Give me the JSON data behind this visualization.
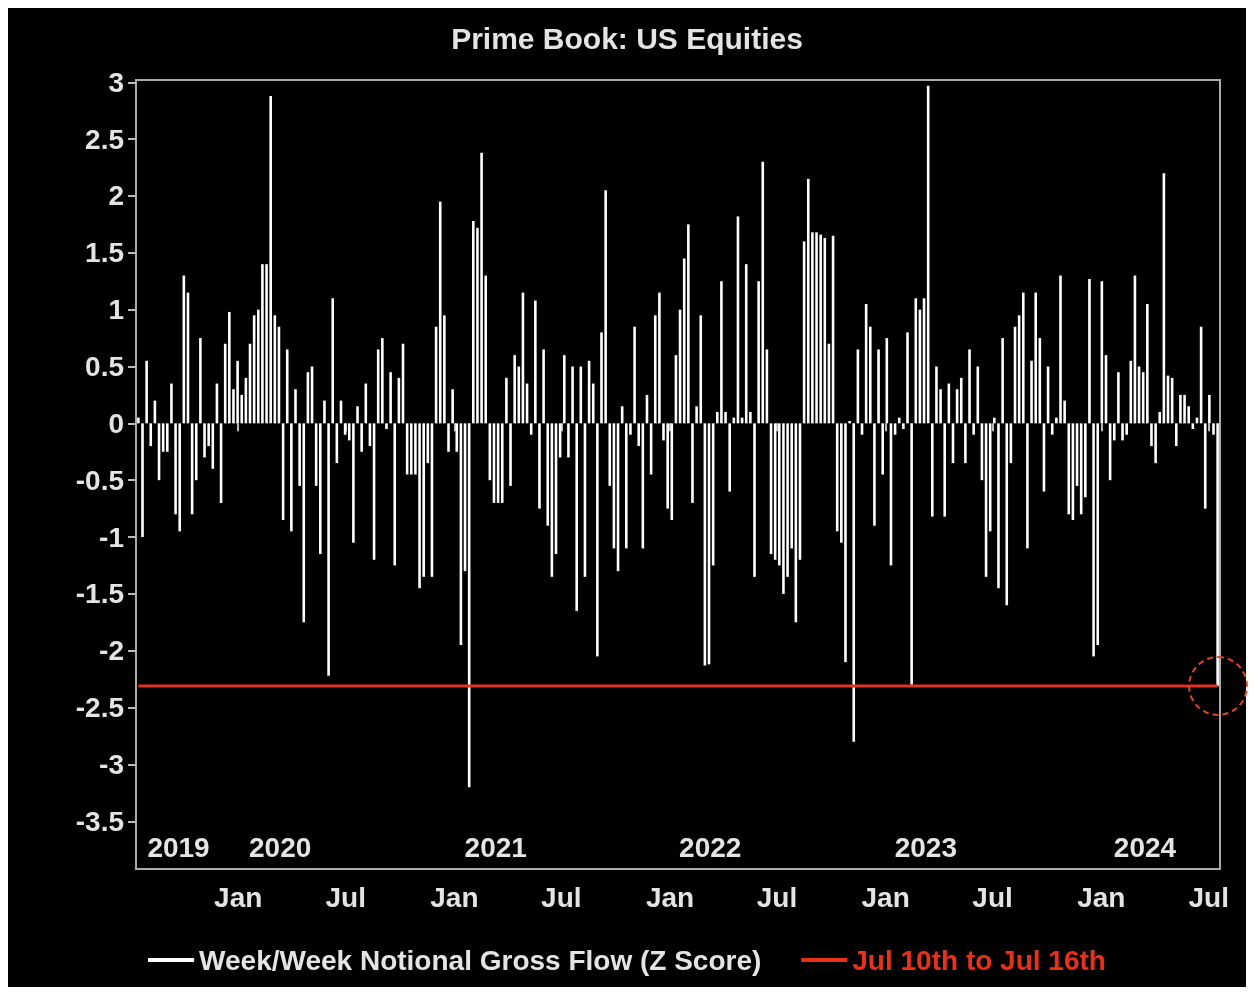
{
  "chart_data": {
    "type": "bar",
    "title": "Prime Book: US Equities",
    "x": [
      "2019-07-16",
      "2019-07-23",
      "2019-07-30",
      "2019-08-06",
      "2019-08-13",
      "2019-08-20",
      "2019-08-27",
      "2019-09-03",
      "2019-09-10",
      "2019-09-17",
      "2019-09-24",
      "2019-10-01",
      "2019-10-08",
      "2019-10-15",
      "2019-10-22",
      "2019-10-29",
      "2019-11-05",
      "2019-11-12",
      "2019-11-19",
      "2019-11-26",
      "2019-12-03",
      "2019-12-10",
      "2019-12-17",
      "2019-12-24",
      "2019-12-31",
      "2020-01-07",
      "2020-01-14",
      "2020-01-21",
      "2020-01-28",
      "2020-02-04",
      "2020-02-11",
      "2020-02-18",
      "2020-02-25",
      "2020-03-03",
      "2020-03-10",
      "2020-03-17",
      "2020-03-24",
      "2020-03-31",
      "2020-04-07",
      "2020-04-14",
      "2020-04-21",
      "2020-04-28",
      "2020-05-05",
      "2020-05-12",
      "2020-05-19",
      "2020-05-26",
      "2020-06-02",
      "2020-06-09",
      "2020-06-16",
      "2020-06-23",
      "2020-06-30",
      "2020-07-07",
      "2020-07-14",
      "2020-07-21",
      "2020-07-28",
      "2020-08-04",
      "2020-08-11",
      "2020-08-18",
      "2020-08-25",
      "2020-09-01",
      "2020-09-08",
      "2020-09-15",
      "2020-09-22",
      "2020-09-29",
      "2020-10-06",
      "2020-10-13",
      "2020-10-20",
      "2020-10-27",
      "2020-11-03",
      "2020-11-10",
      "2020-11-17",
      "2020-11-24",
      "2020-12-01",
      "2020-12-08",
      "2020-12-15",
      "2020-12-22",
      "2020-12-29",
      "2021-01-05",
      "2021-01-12",
      "2021-01-19",
      "2021-01-26",
      "2021-02-02",
      "2021-02-09",
      "2021-02-16",
      "2021-02-23",
      "2021-03-02",
      "2021-03-09",
      "2021-03-16",
      "2021-03-23",
      "2021-03-30",
      "2021-04-06",
      "2021-04-13",
      "2021-04-20",
      "2021-04-27",
      "2021-05-04",
      "2021-05-11",
      "2021-05-18",
      "2021-05-25",
      "2021-06-01",
      "2021-06-08",
      "2021-06-15",
      "2021-06-22",
      "2021-06-29",
      "2021-07-06",
      "2021-07-13",
      "2021-07-20",
      "2021-07-27",
      "2021-08-03",
      "2021-08-10",
      "2021-08-17",
      "2021-08-24",
      "2021-08-31",
      "2021-09-07",
      "2021-09-14",
      "2021-09-21",
      "2021-09-28",
      "2021-10-05",
      "2021-10-12",
      "2021-10-19",
      "2021-10-26",
      "2021-11-02",
      "2021-11-09",
      "2021-11-16",
      "2021-11-23",
      "2021-11-30",
      "2021-12-07",
      "2021-12-14",
      "2021-12-21",
      "2021-12-28",
      "2022-01-04",
      "2022-01-11",
      "2022-01-18",
      "2022-01-25",
      "2022-02-01",
      "2022-02-08",
      "2022-02-15",
      "2022-02-22",
      "2022-03-01",
      "2022-03-08",
      "2022-03-15",
      "2022-03-22",
      "2022-03-29",
      "2022-04-05",
      "2022-04-12",
      "2022-04-19",
      "2022-04-26",
      "2022-05-03",
      "2022-05-10",
      "2022-05-17",
      "2022-05-24",
      "2022-05-31",
      "2022-06-07",
      "2022-06-14",
      "2022-06-21",
      "2022-06-28",
      "2022-07-05",
      "2022-07-12",
      "2022-07-19",
      "2022-07-26",
      "2022-08-02",
      "2022-08-09",
      "2022-08-16",
      "2022-08-23",
      "2022-08-30",
      "2022-09-06",
      "2022-09-13",
      "2022-09-20",
      "2022-09-27",
      "2022-10-04",
      "2022-10-11",
      "2022-10-18",
      "2022-10-25",
      "2022-11-01",
      "2022-11-08",
      "2022-11-15",
      "2022-11-22",
      "2022-11-29",
      "2022-12-06",
      "2022-12-13",
      "2022-12-20",
      "2022-12-27",
      "2023-01-03",
      "2023-01-10",
      "2023-01-17",
      "2023-01-24",
      "2023-01-31",
      "2023-02-07",
      "2023-02-14",
      "2023-02-21",
      "2023-02-28",
      "2023-03-07",
      "2023-03-14",
      "2023-03-21",
      "2023-03-28",
      "2023-04-04",
      "2023-04-11",
      "2023-04-18",
      "2023-04-25",
      "2023-05-02",
      "2023-05-09",
      "2023-05-16",
      "2023-05-23",
      "2023-05-30",
      "2023-06-06",
      "2023-06-13",
      "2023-06-20",
      "2023-06-27",
      "2023-07-04",
      "2023-07-11",
      "2023-07-18",
      "2023-07-25",
      "2023-08-01",
      "2023-08-08",
      "2023-08-15",
      "2023-08-22",
      "2023-08-29",
      "2023-09-05",
      "2023-09-12",
      "2023-09-19",
      "2023-09-26",
      "2023-10-03",
      "2023-10-10",
      "2023-10-17",
      "2023-10-24",
      "2023-10-31",
      "2023-11-07",
      "2023-11-14",
      "2023-11-21",
      "2023-11-28",
      "2023-12-05",
      "2023-12-12",
      "2023-12-19",
      "2023-12-26",
      "2024-01-02",
      "2024-01-09",
      "2024-01-16",
      "2024-01-23",
      "2024-01-30",
      "2024-02-06",
      "2024-02-13",
      "2024-02-20",
      "2024-02-27",
      "2024-03-05",
      "2024-03-12",
      "2024-03-19",
      "2024-03-26",
      "2024-04-02",
      "2024-04-09",
      "2024-04-16",
      "2024-04-23",
      "2024-04-30",
      "2024-05-07",
      "2024-05-14",
      "2024-05-21",
      "2024-05-28",
      "2024-06-04",
      "2024-06-11",
      "2024-06-18",
      "2024-06-25",
      "2024-07-02",
      "2024-07-09",
      "2024-07-16"
    ],
    "series": [
      {
        "name": "Week/Week Notional Gross Flow (Z Score)",
        "color": "#ffffff",
        "values": [
          0.05,
          -1.0,
          0.55,
          -0.2,
          0.2,
          -0.5,
          -0.25,
          -0.25,
          0.35,
          -0.8,
          -0.95,
          1.3,
          1.15,
          -0.8,
          -0.5,
          0.75,
          -0.3,
          -0.2,
          -0.4,
          0.35,
          -0.7,
          0.7,
          0.98,
          0.3,
          0.55,
          0.25,
          0.4,
          0.7,
          0.95,
          1.0,
          1.4,
          1.4,
          2.88,
          0.95,
          0.85,
          -0.85,
          0.65,
          -0.95,
          0.3,
          -0.55,
          -1.75,
          0.45,
          0.5,
          -0.55,
          -1.15,
          0.2,
          -2.22,
          1.1,
          -0.35,
          0.2,
          -0.1,
          -0.15,
          -1.05,
          0.15,
          -0.25,
          0.35,
          -0.2,
          -1.2,
          0.65,
          0.75,
          -0.05,
          0.45,
          -1.25,
          0.4,
          0.7,
          -0.45,
          -0.45,
          -0.45,
          -1.45,
          -1.35,
          -0.35,
          -1.35,
          0.85,
          1.95,
          0.95,
          -0.25,
          0.3,
          -0.25,
          -1.95,
          -1.3,
          -3.2,
          1.78,
          1.72,
          2.38,
          1.3,
          -0.5,
          -0.7,
          -0.7,
          -0.7,
          0.4,
          -0.55,
          0.6,
          0.5,
          1.15,
          0.35,
          -0.1,
          1.08,
          -0.75,
          0.65,
          -0.9,
          -1.35,
          -1.15,
          -0.3,
          0.6,
          -0.3,
          0.5,
          -1.65,
          0.5,
          -1.35,
          0.55,
          0.35,
          -2.05,
          0.8,
          2.05,
          -0.55,
          -1.1,
          -1.3,
          0.15,
          -1.1,
          -0.1,
          0.85,
          -0.2,
          -1.1,
          0.25,
          -0.45,
          0.95,
          1.15,
          -0.15,
          -0.75,
          -0.85,
          0.6,
          1.0,
          1.45,
          1.75,
          -0.7,
          0.15,
          0.95,
          -2.13,
          -2.12,
          -1.25,
          0.1,
          1.25,
          0.1,
          -0.6,
          0.05,
          1.82,
          0.05,
          1.4,
          0.1,
          -1.35,
          1.25,
          2.3,
          0.65,
          -1.15,
          -1.2,
          -1.25,
          -1.5,
          -1.35,
          -1.1,
          -1.75,
          -1.2,
          1.6,
          2.15,
          1.68,
          1.68,
          1.66,
          1.63,
          0.7,
          1.65,
          -0.95,
          -1.05,
          -2.1,
          0.02,
          -2.8,
          0.65,
          -0.1,
          1.05,
          0.85,
          -0.9,
          0.65,
          -0.45,
          0.75,
          -1.25,
          -0.1,
          0.05,
          -0.05,
          0.8,
          -2.3,
          1.1,
          1.0,
          1.1,
          2.97,
          -0.82,
          0.5,
          0.3,
          -0.82,
          0.35,
          -0.35,
          0.3,
          0.4,
          -0.35,
          0.65,
          -0.1,
          0.5,
          -0.5,
          -1.35,
          -0.95,
          0.05,
          -1.45,
          0.75,
          -1.6,
          -0.35,
          0.85,
          0.95,
          1.15,
          -1.1,
          0.55,
          1.15,
          0.75,
          -0.6,
          0.5,
          -0.1,
          0.05,
          1.3,
          0.2,
          -0.8,
          -0.85,
          -0.55,
          -0.8,
          -0.65,
          1.27,
          -2.05,
          -1.95,
          1.25,
          0.6,
          -0.5,
          -0.15,
          0.45,
          -0.15,
          -0.1,
          0.55,
          1.3,
          0.5,
          0.45,
          1.05,
          -0.2,
          -0.35,
          0.1,
          2.2,
          0.42,
          0.4,
          -0.2,
          0.25,
          0.25,
          0.15,
          -0.05,
          0.05,
          0.85,
          -0.75,
          0.25,
          -0.1,
          -2.31
        ]
      },
      {
        "name": "Jul 10th to Jul 16th",
        "type": "line",
        "color": "#e8311a",
        "x": [
          "2019-07-16",
          "2024-07-16"
        ],
        "values": [
          -2.31,
          -2.31
        ]
      }
    ],
    "xlim": [
      "2019-07-12",
      "2024-07-20"
    ],
    "xticks": [
      {
        "value": "2020-01-01",
        "label": "Jan"
      },
      {
        "value": "2020-07-01",
        "label": "Jul"
      },
      {
        "value": "2021-01-01",
        "label": "Jan"
      },
      {
        "value": "2021-07-01",
        "label": "Jul"
      },
      {
        "value": "2022-01-01",
        "label": "Jan"
      },
      {
        "value": "2022-07-01",
        "label": "Jul"
      },
      {
        "value": "2023-01-01",
        "label": "Jan"
      },
      {
        "value": "2023-07-01",
        "label": "Jul"
      },
      {
        "value": "2024-01-01",
        "label": "Jan"
      },
      {
        "value": "2024-07-01",
        "label": "Jul"
      }
    ],
    "x2lim": [
      "2019-07-12",
      "2024-07-20"
    ],
    "x2ticks": [
      {
        "value": "2019-09-22",
        "label": "2019"
      },
      {
        "value": "2020-03-12",
        "label": "2020"
      },
      {
        "value": "2021-03-12",
        "label": "2021"
      },
      {
        "value": "2022-03-10",
        "label": "2022"
      },
      {
        "value": "2023-03-10",
        "label": "2023"
      },
      {
        "value": "2024-03-15",
        "label": "2024"
      }
    ],
    "ylim": [
      -3.92,
      3.02
    ],
    "yticks": [
      -3.5,
      -3,
      -2.5,
      -2,
      -1.5,
      -1,
      -0.5,
      0,
      0.5,
      1,
      1.5,
      2,
      2.5,
      3
    ],
    "grid": false,
    "legend": "bottom",
    "marker": "none",
    "line_style": "solid"
  }
}
